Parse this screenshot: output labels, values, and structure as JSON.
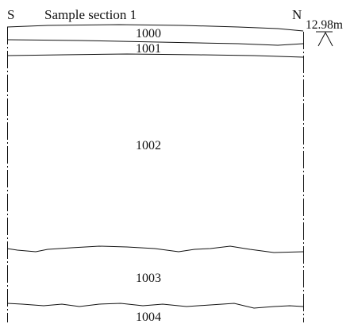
{
  "section": {
    "title": "Sample section 1",
    "left_direction": "S",
    "right_direction": "N",
    "datum_level": "12.98m",
    "line_color": "#111111",
    "contexts": [
      {
        "id": "1000"
      },
      {
        "id": "1001"
      },
      {
        "id": "1002"
      },
      {
        "id": "1003"
      },
      {
        "id": "1004"
      }
    ]
  }
}
